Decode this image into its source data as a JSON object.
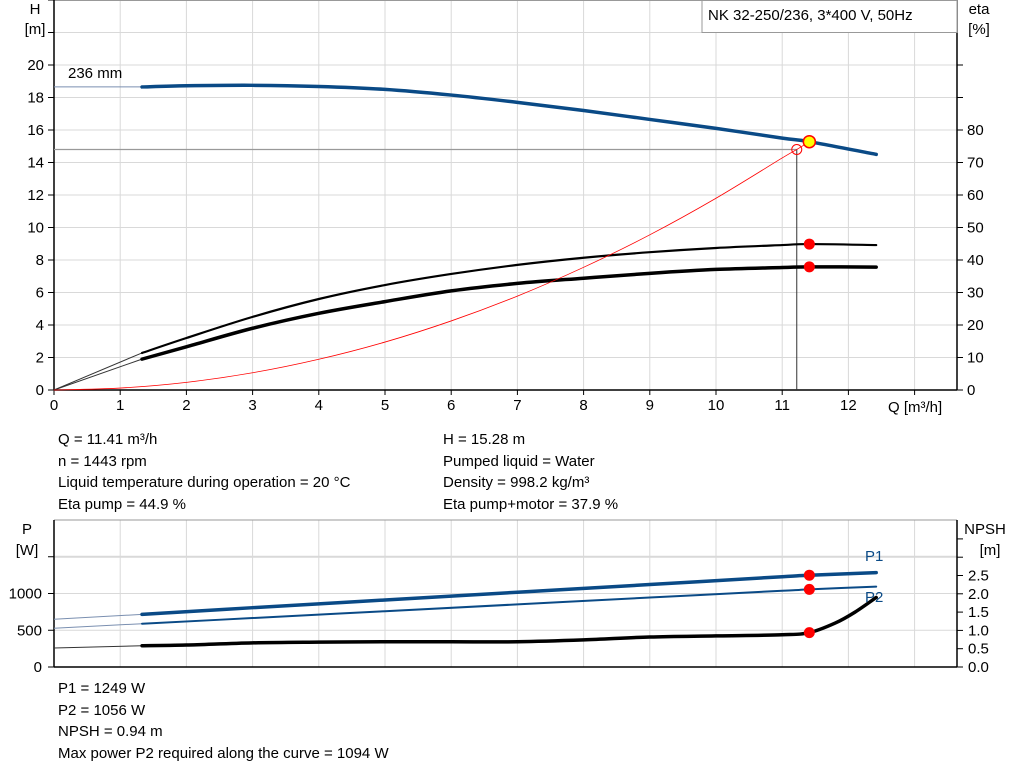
{
  "chart_data": [
    {
      "type": "line",
      "title": "NK 32-250/236, 3*400 V, 50Hz",
      "xlabel": "Q [m³/h]",
      "ylabel": "H\n[m]",
      "ylabel_right": "eta\n[%]",
      "xlim": [
        0,
        13.7
      ],
      "ylim": [
        0,
        24
      ],
      "ylim_right": [
        0,
        120
      ],
      "grid": true,
      "x_ticks": [
        "0",
        "1",
        "2",
        "3",
        "4",
        "5",
        "6",
        "7",
        "8",
        "9",
        "10",
        "11",
        "12"
      ],
      "y_ticks": [
        "0",
        "2",
        "4",
        "6",
        "8",
        "10",
        "12",
        "14",
        "16",
        "18",
        "20"
      ],
      "y_ticks_right": [
        "0",
        "10",
        "20",
        "30",
        "40",
        "50",
        "60",
        "70",
        "80"
      ],
      "y_label_title": "H",
      "y_label_unit": "[m]",
      "y_right_title": "eta",
      "y_right_unit": "[%]",
      "curve_label": "236 mm",
      "series": [
        {
          "id": "head",
          "axis": "left",
          "color": "#0a4a86",
          "x": [
            1.33,
            2,
            3,
            4,
            5,
            6,
            7,
            8,
            9,
            10,
            11,
            11.41,
            12.42
          ],
          "y": [
            18.65,
            18.72,
            18.75,
            18.68,
            18.5,
            18.15,
            17.7,
            17.2,
            16.65,
            16.1,
            15.5,
            15.28,
            14.5
          ],
          "extension_start": [
            0,
            18.65
          ]
        },
        {
          "id": "eta-pump",
          "axis": "right",
          "color": "#000000",
          "x": [
            1.33,
            2,
            3,
            4,
            5,
            6,
            7,
            8,
            9,
            10,
            11,
            11.41,
            12.42
          ],
          "y": [
            11.4,
            16,
            22.5,
            28,
            32.3,
            35.7,
            38.5,
            40.7,
            42.4,
            43.7,
            44.6,
            44.9,
            44.6
          ],
          "extension_start": [
            0,
            0
          ]
        },
        {
          "id": "eta-pump-motor",
          "axis": "right",
          "color": "#000000",
          "x": [
            1.33,
            2,
            3,
            4,
            5,
            6,
            7,
            8,
            9,
            10,
            11,
            11.41,
            12.42
          ],
          "y": [
            9.5,
            13.3,
            19,
            23.6,
            27.2,
            30.5,
            32.8,
            34.4,
            35.9,
            37.1,
            37.7,
            37.9,
            37.8
          ],
          "extension_start": [
            0,
            0
          ]
        },
        {
          "id": "system-curve",
          "axis": "left",
          "color": "#ff0000",
          "x": [
            0,
            1,
            2,
            3,
            4,
            5,
            6,
            7,
            8,
            9,
            10,
            11,
            11.22,
            11.41
          ],
          "y": [
            0,
            0.12,
            0.47,
            1.06,
            1.89,
            2.95,
            4.25,
            5.78,
            7.55,
            9.55,
            11.8,
            14.28,
            14.8,
            15.28
          ]
        }
      ],
      "duty_point": {
        "Q": 11.41,
        "H": 15.28,
        "eta_pump": 44.9,
        "eta_pump_motor": 37.9
      },
      "requested_point": {
        "Q": 11.22,
        "H": 14.8
      }
    },
    {
      "type": "line",
      "xlim": [
        0,
        13.7
      ],
      "ylim": [
        0,
        2000
      ],
      "ylim_right": [
        0,
        4.0
      ],
      "grid": true,
      "y_ticks": [
        "0",
        "500",
        "1000"
      ],
      "y_ticks_right": [
        "0.0",
        "0.5",
        "1.0",
        "1.5",
        "2.0",
        "2.5"
      ],
      "y_label_title": "P",
      "y_label_unit": "[W]",
      "y_right_title": "NPSH",
      "y_right_unit": "[m]",
      "series": [
        {
          "id": "P1",
          "name": "P1",
          "axis": "left",
          "color": "#0a4a86",
          "x": [
            1.33,
            3,
            5,
            7,
            9,
            11,
            11.41,
            12.42
          ],
          "y": [
            716,
            807,
            912,
            1017,
            1122,
            1228,
            1249,
            1284
          ],
          "extension_start": [
            0,
            649
          ]
        },
        {
          "id": "P2",
          "name": "P2",
          "axis": "left",
          "color": "#0a4a86",
          "x": [
            1.33,
            3,
            5,
            7,
            9,
            11,
            11.41,
            12.42
          ],
          "y": [
            589,
            666,
            759,
            852,
            945,
            1037,
            1056,
            1094
          ],
          "extension_start": [
            0,
            527
          ]
        },
        {
          "id": "NPSH",
          "axis": "right",
          "color": "#000000",
          "x": [
            1.33,
            2,
            3,
            4,
            5,
            6,
            7,
            8,
            9,
            10,
            11,
            11.41,
            11.8,
            12.1,
            12.42
          ],
          "y": [
            0.58,
            0.6,
            0.66,
            0.68,
            0.69,
            0.69,
            0.69,
            0.74,
            0.82,
            0.85,
            0.88,
            0.94,
            1.2,
            1.5,
            1.9
          ],
          "extension_start": [
            0,
            0.52
          ]
        }
      ],
      "duty_point": {
        "Q": 11.41,
        "P1": 1249,
        "P2": 1056,
        "NPSH": 0.94
      }
    }
  ],
  "info_top_left": [
    "Q = 11.41 m³/h",
    "n = 1443 rpm",
    "Liquid temperature during operation = 20 °C",
    "Eta pump = 44.9 %"
  ],
  "info_top_right": [
    "H = 15.28 m",
    "Pumped liquid = Water",
    "Density = 998.2 kg/m³",
    "Eta pump+motor = 37.9 %"
  ],
  "info_bottom": [
    "P1 = 1249 W",
    "P2 = 1056 W",
    "NPSH = 0.94 m",
    "Max power P2 required along the curve = 1094 W"
  ],
  "colors": {
    "curve_blue": "#0a4a86",
    "duty_red": "#ff0000",
    "duty_yellow": "#ffff00",
    "grid": "#d9d9d9"
  }
}
